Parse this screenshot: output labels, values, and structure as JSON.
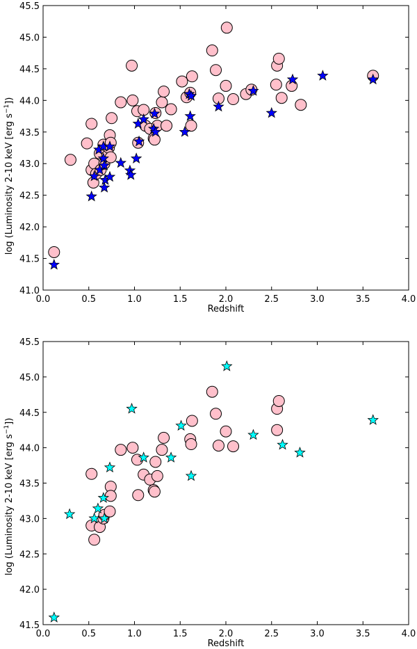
{
  "colors": {
    "circle_fill": "#ffc0cb",
    "circle_edge": "#000000",
    "star_top": "#0000ff",
    "star_bottom": "#00ffff",
    "axes": "#000000",
    "background": "#ffffff"
  },
  "chart_data": [
    {
      "type": "scatter",
      "title": "",
      "xlabel": "Redshift",
      "ylabel_main": "log (Luminosity 2-10 keV [erg s",
      "ylabel_sup": "−1",
      "ylabel_end": "])",
      "xlim": [
        0.0,
        4.0
      ],
      "ylim": [
        41.0,
        45.5
      ],
      "xticks": [
        "0.0",
        "0.5",
        "1.0",
        "1.5",
        "2.0",
        "2.5",
        "3.0",
        "3.5",
        "4.0"
      ],
      "yticks": [
        "41.0",
        "41.5",
        "42.0",
        "42.5",
        "43.0",
        "43.5",
        "44.0",
        "44.5",
        "45.0",
        "45.5"
      ],
      "grid": false,
      "series": [
        {
          "name": "circles",
          "marker": "circle",
          "points": [
            [
              0.12,
              41.6
            ],
            [
              0.3,
              43.06
            ],
            [
              0.48,
              43.32
            ],
            [
              0.53,
              43.63
            ],
            [
              0.53,
              42.9
            ],
            [
              0.55,
              42.7
            ],
            [
              0.56,
              43.0
            ],
            [
              0.58,
              42.84
            ],
            [
              0.62,
              43.16
            ],
            [
              0.63,
              42.9
            ],
            [
              0.66,
              43.3
            ],
            [
              0.67,
              43.0
            ],
            [
              0.7,
              43.12
            ],
            [
              0.72,
              43.25
            ],
            [
              0.73,
              43.45
            ],
            [
              0.74,
              43.33
            ],
            [
              0.74,
              43.1
            ],
            [
              0.75,
              43.72
            ],
            [
              0.85,
              43.97
            ],
            [
              0.97,
              44.55
            ],
            [
              0.98,
              44.0
            ],
            [
              1.03,
              43.83
            ],
            [
              1.04,
              43.33
            ],
            [
              1.1,
              43.85
            ],
            [
              1.12,
              43.6
            ],
            [
              1.17,
              43.55
            ],
            [
              1.21,
              43.4
            ],
            [
              1.22,
              43.38
            ],
            [
              1.23,
              43.8
            ],
            [
              1.25,
              43.6
            ],
            [
              1.3,
              43.97
            ],
            [
              1.32,
              44.14
            ],
            [
              1.35,
              43.6
            ],
            [
              1.4,
              43.86
            ],
            [
              1.52,
              44.3
            ],
            [
              1.57,
              44.05
            ],
            [
              1.61,
              44.12
            ],
            [
              1.62,
              43.6
            ],
            [
              1.63,
              44.38
            ],
            [
              1.85,
              44.79
            ],
            [
              1.89,
              44.48
            ],
            [
              1.92,
              44.03
            ],
            [
              2.0,
              44.23
            ],
            [
              2.01,
              45.15
            ],
            [
              2.08,
              44.02
            ],
            [
              2.22,
              44.1
            ],
            [
              2.28,
              44.17
            ],
            [
              2.55,
              44.25
            ],
            [
              2.56,
              44.55
            ],
            [
              2.58,
              44.66
            ],
            [
              2.61,
              44.04
            ],
            [
              2.72,
              44.23
            ],
            [
              2.82,
              43.93
            ],
            [
              3.61,
              44.39
            ]
          ]
        },
        {
          "name": "stars",
          "marker": "star",
          "points": [
            [
              0.12,
              41.4
            ],
            [
              0.53,
              42.48
            ],
            [
              0.56,
              42.8
            ],
            [
              0.61,
              43.22
            ],
            [
              0.62,
              42.9
            ],
            [
              0.66,
              43.27
            ],
            [
              0.66,
              43.08
            ],
            [
              0.67,
              42.62
            ],
            [
              0.67,
              42.97
            ],
            [
              0.68,
              42.74
            ],
            [
              0.73,
              43.27
            ],
            [
              0.73,
              42.79
            ],
            [
              0.85,
              43.01
            ],
            [
              0.95,
              42.89
            ],
            [
              0.96,
              42.82
            ],
            [
              1.02,
              43.08
            ],
            [
              1.04,
              43.63
            ],
            [
              1.05,
              43.35
            ],
            [
              1.1,
              43.7
            ],
            [
              1.21,
              43.55
            ],
            [
              1.22,
              43.79
            ],
            [
              1.23,
              43.5
            ],
            [
              1.55,
              43.5
            ],
            [
              1.6,
              44.1
            ],
            [
              1.61,
              43.75
            ],
            [
              1.62,
              44.07
            ],
            [
              1.92,
              43.9
            ],
            [
              2.3,
              44.15
            ],
            [
              2.5,
              43.8
            ],
            [
              2.73,
              44.33
            ],
            [
              3.06,
              44.39
            ],
            [
              3.61,
              44.33
            ]
          ]
        }
      ]
    },
    {
      "type": "scatter",
      "title": "",
      "xlabel": "Redshift",
      "ylabel_main": "log (Luminosity 2-10 keV [erg s",
      "ylabel_sup": "−1",
      "ylabel_end": "])",
      "xlim": [
        0.0,
        4.0
      ],
      "ylim": [
        41.5,
        45.5
      ],
      "xticks": [
        "0.0",
        "0.5",
        "1.0",
        "1.5",
        "2.0",
        "2.5",
        "3.0",
        "3.5",
        "4.0"
      ],
      "yticks": [
        "41.5",
        "42.0",
        "42.5",
        "43.0",
        "43.5",
        "44.0",
        "44.5",
        "45.0",
        "45.5"
      ],
      "grid": false,
      "series": [
        {
          "name": "circles",
          "marker": "circle",
          "points": [
            [
              0.53,
              43.63
            ],
            [
              0.53,
              42.9
            ],
            [
              0.56,
              42.7
            ],
            [
              0.62,
              42.88
            ],
            [
              0.66,
              43.0
            ],
            [
              0.67,
              43.05
            ],
            [
              0.73,
              43.1
            ],
            [
              0.74,
              43.45
            ],
            [
              0.74,
              43.32
            ],
            [
              0.85,
              43.97
            ],
            [
              0.98,
              44.0
            ],
            [
              1.03,
              43.83
            ],
            [
              1.04,
              43.33
            ],
            [
              1.1,
              43.62
            ],
            [
              1.17,
              43.55
            ],
            [
              1.21,
              43.4
            ],
            [
              1.22,
              43.38
            ],
            [
              1.23,
              43.8
            ],
            [
              1.25,
              43.6
            ],
            [
              1.3,
              43.97
            ],
            [
              1.32,
              44.14
            ],
            [
              1.61,
              44.12
            ],
            [
              1.62,
              44.05
            ],
            [
              1.63,
              44.38
            ],
            [
              1.85,
              44.79
            ],
            [
              1.89,
              44.48
            ],
            [
              1.92,
              44.03
            ],
            [
              2.0,
              44.23
            ],
            [
              2.08,
              44.02
            ],
            [
              2.56,
              44.25
            ],
            [
              2.56,
              44.55
            ],
            [
              2.58,
              44.66
            ]
          ]
        },
        {
          "name": "stars",
          "marker": "star",
          "points": [
            [
              0.12,
              41.6
            ],
            [
              0.29,
              43.06
            ],
            [
              0.56,
              43.0
            ],
            [
              0.6,
              43.14
            ],
            [
              0.66,
              43.29
            ],
            [
              0.67,
              43.0
            ],
            [
              0.73,
              43.72
            ],
            [
              0.97,
              44.55
            ],
            [
              1.1,
              43.86
            ],
            [
              1.4,
              43.86
            ],
            [
              1.51,
              44.31
            ],
            [
              1.62,
              43.6
            ],
            [
              2.01,
              45.15
            ],
            [
              2.3,
              44.18
            ],
            [
              2.62,
              44.04
            ],
            [
              2.81,
              43.93
            ],
            [
              3.61,
              44.39
            ]
          ]
        }
      ]
    }
  ]
}
